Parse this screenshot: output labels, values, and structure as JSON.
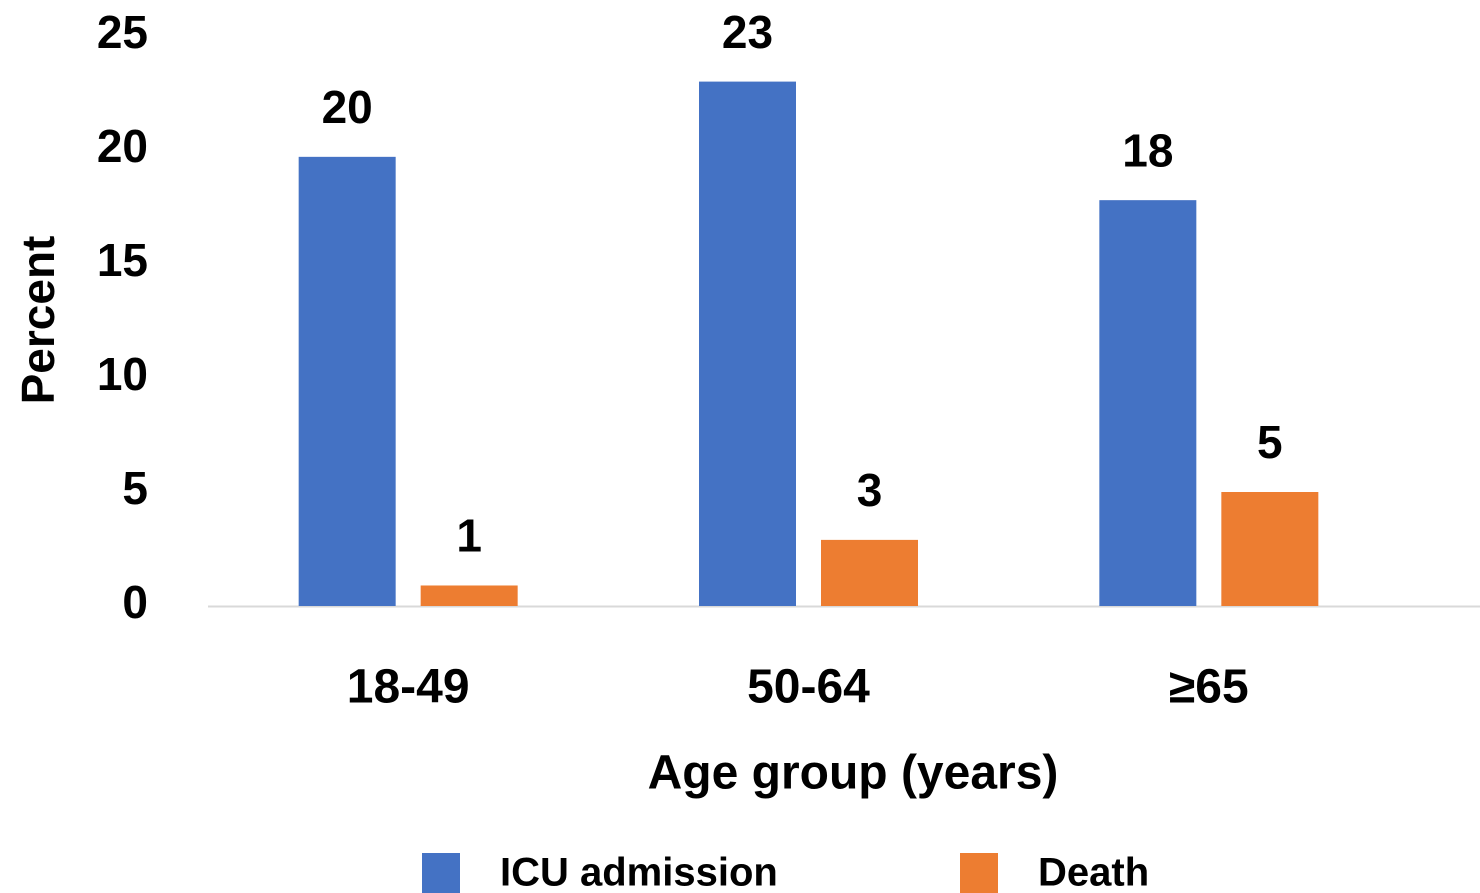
{
  "chart_data": {
    "type": "bar",
    "categories": [
      "18-49",
      "50-64",
      "≥65"
    ],
    "series": [
      {
        "name": "ICU admission",
        "color": "#4472c4",
        "values": [
          19.7,
          23,
          17.8
        ],
        "value_labels": [
          "20",
          "23",
          "18"
        ]
      },
      {
        "name": "Death",
        "color": "#ed7d31",
        "values": [
          0.9,
          2.9,
          5
        ],
        "value_labels": [
          "1",
          "3",
          "5"
        ]
      }
    ],
    "ylim": [
      0,
      25
    ],
    "yticks": [
      0,
      5,
      10,
      15,
      20,
      25
    ],
    "y_label": "Percent",
    "x_label": "Age group (years)",
    "legend": "bottom",
    "grid": false
  }
}
